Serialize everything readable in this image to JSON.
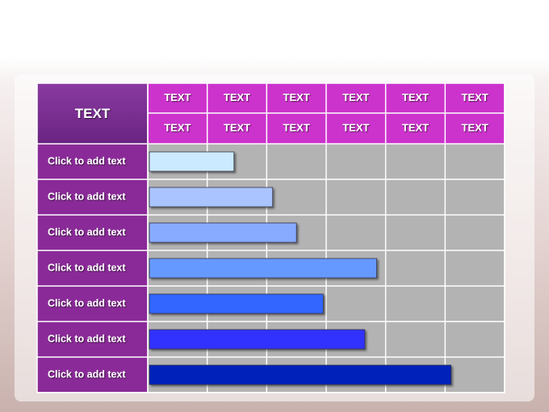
{
  "chart_data": {
    "type": "bar",
    "orientation": "horizontal",
    "corner_label": "TEXT",
    "header_rows": [
      [
        "TEXT",
        "TEXT",
        "TEXT",
        "TEXT",
        "TEXT",
        "TEXT"
      ],
      [
        "TEXT",
        "TEXT",
        "TEXT",
        "TEXT",
        "TEXT",
        "TEXT"
      ]
    ],
    "categories": [
      "Click to add text",
      "Click to add text",
      "Click to add text",
      "Click to add text",
      "Click to add text",
      "Click to add text",
      "Click to add text"
    ],
    "values": [
      1.45,
      2.1,
      2.5,
      3.85,
      2.95,
      3.65,
      5.1
    ],
    "colors": [
      "#cceaff",
      "#aac4ff",
      "#88aaff",
      "#6699ff",
      "#3366ff",
      "#3333ff",
      "#0022bb"
    ],
    "xlim": [
      0,
      6
    ],
    "xticks": [
      0,
      1,
      2,
      3,
      4,
      5,
      6
    ],
    "grid": true
  }
}
